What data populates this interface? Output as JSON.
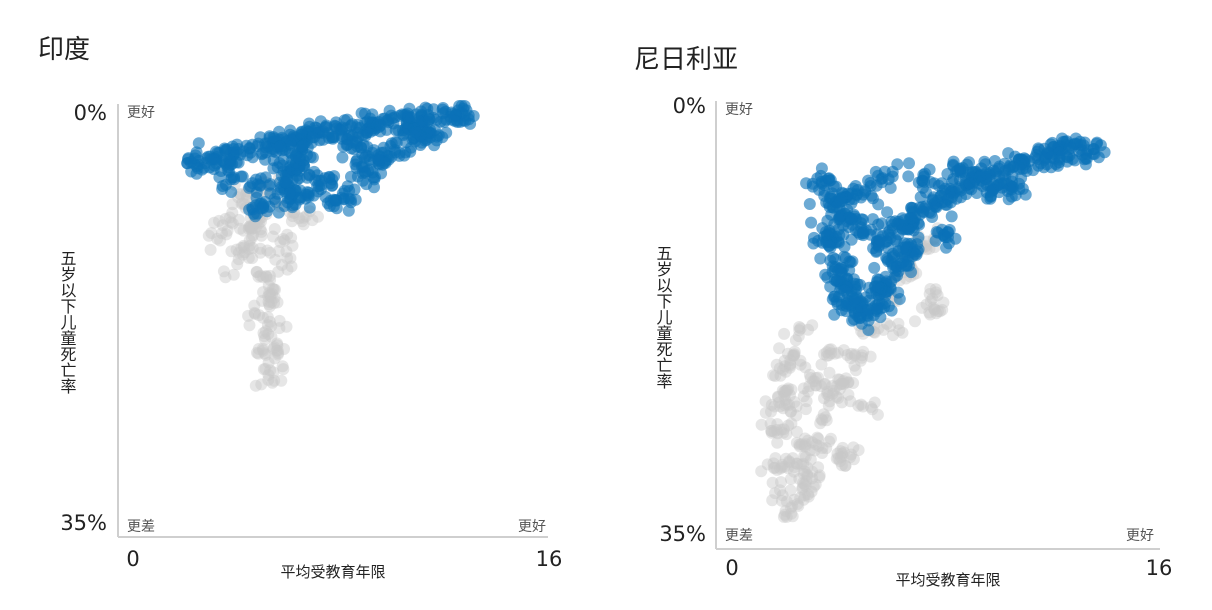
{
  "chart_data": [
    {
      "type": "scatter",
      "title": "印度",
      "xlabel": "平均受教育年限",
      "ylabel": "五岁以下儿童死亡率",
      "xlim": [
        0,
        16
      ],
      "ylim": [
        0,
        35
      ],
      "y_inverted": true,
      "x_tick_labels": [
        "0",
        "16"
      ],
      "y_tick_labels": [
        "0%",
        "35%"
      ],
      "corner_labels": {
        "top_left": "更好",
        "bottom_left": "更差",
        "bottom_right": "更好"
      },
      "series": [
        {
          "color": "#c8c8c8",
          "opacity": 0.45,
          "count": 200,
          "points": [
            [
              4.6,
              8
            ],
            [
              4.9,
              11
            ],
            [
              5.0,
              10
            ],
            [
              5.3,
              12
            ],
            [
              5.4,
              14
            ],
            [
              5.6,
              16
            ],
            [
              5.7,
              18
            ],
            [
              5.2,
              9
            ],
            [
              4.5,
              12
            ],
            [
              4.2,
              9.5
            ],
            [
              3.8,
              11
            ],
            [
              5.9,
              20
            ],
            [
              5.8,
              15
            ],
            [
              6.1,
              13
            ],
            [
              6.2,
              11
            ],
            [
              4.8,
              7
            ],
            [
              5.5,
              7
            ],
            [
              6.5,
              9
            ],
            [
              7.0,
              9
            ],
            [
              4.0,
              14
            ],
            [
              5.1,
              17
            ],
            [
              5.4,
              20
            ],
            [
              5.6,
              22
            ]
          ]
        },
        {
          "color": "#0a72b8",
          "opacity": 0.6,
          "count": 600,
          "points": [
            [
              3.0,
              4.8
            ],
            [
              3.6,
              4.3
            ],
            [
              4.3,
              4.0
            ],
            [
              4.9,
              3.5
            ],
            [
              5.6,
              3.3
            ],
            [
              6.1,
              3.0
            ],
            [
              6.6,
              2.9
            ],
            [
              7.0,
              2.5
            ],
            [
              7.6,
              2.2
            ],
            [
              8.3,
              2.0
            ],
            [
              9.0,
              1.8
            ],
            [
              9.5,
              1.6
            ],
            [
              10.0,
              1.2
            ],
            [
              10.8,
              1.0
            ],
            [
              11.3,
              0.8
            ],
            [
              12.1,
              0.6
            ],
            [
              12.8,
              0.6
            ],
            [
              6.3,
              6.0
            ],
            [
              6.4,
              7.6
            ],
            [
              6.6,
              5.3
            ],
            [
              7.1,
              7.1
            ],
            [
              7.7,
              5.9
            ],
            [
              8.4,
              7.6
            ],
            [
              9.1,
              5.5
            ],
            [
              9.7,
              4.5
            ],
            [
              10.3,
              3.6
            ],
            [
              11.0,
              2.6
            ],
            [
              11.6,
              2.2
            ],
            [
              5.2,
              6.4
            ],
            [
              4.2,
              6.0
            ],
            [
              5.4,
              8.1
            ],
            [
              6.8,
              4.1
            ],
            [
              8.9,
              3.3
            ],
            [
              10.6,
              2.0
            ]
          ]
        }
      ]
    },
    {
      "type": "scatter",
      "title": "尼日利亚",
      "xlabel": "平均受教育年限",
      "ylabel": "五岁以下儿童死亡率",
      "xlim": [
        0,
        16
      ],
      "ylim": [
        0,
        35
      ],
      "y_inverted": true,
      "x_tick_labels": [
        "0",
        "16"
      ],
      "y_tick_labels": [
        "0%",
        "35%"
      ],
      "corner_labels": {
        "top_left": "更好",
        "bottom_left": "更差",
        "bottom_right": "更好"
      },
      "series": [
        {
          "color": "#c8c8c8",
          "opacity": 0.45,
          "count": 350,
          "points": [
            [
              2.3,
              21
            ],
            [
              2.5,
              23
            ],
            [
              2.9,
              24
            ],
            [
              2.6,
              25.5
            ],
            [
              3.0,
              27
            ],
            [
              2.9,
              28.5
            ],
            [
              3.3,
              29.5
            ],
            [
              3.6,
              27
            ],
            [
              2.1,
              26
            ],
            [
              2.2,
              29
            ],
            [
              2.4,
              31
            ],
            [
              2.7,
              32
            ],
            [
              3.2,
              31
            ],
            [
              3.8,
              25
            ],
            [
              4.2,
              23
            ],
            [
              4.6,
              22
            ],
            [
              5.0,
              20
            ],
            [
              5.6,
              18
            ],
            [
              6.3,
              15
            ],
            [
              7.0,
              13
            ],
            [
              7.6,
              11
            ],
            [
              6.6,
              18
            ],
            [
              7.8,
              15.5
            ],
            [
              8.0,
              16.5
            ],
            [
              4.5,
              28
            ],
            [
              3.0,
              18
            ],
            [
              2.8,
              20
            ],
            [
              5.3,
              24
            ],
            [
              4.0,
              20
            ],
            [
              3.5,
              22
            ],
            [
              2.1,
              24
            ]
          ]
        },
        {
          "color": "#0a72b8",
          "opacity": 0.6,
          "count": 700,
          "points": [
            [
              3.8,
              6.3
            ],
            [
              3.9,
              7.4
            ],
            [
              4.2,
              8.3
            ],
            [
              4.5,
              9.0
            ],
            [
              4.9,
              9.2
            ],
            [
              5.4,
              10.1
            ],
            [
              4.4,
              11.0
            ],
            [
              4.3,
              12.4
            ],
            [
              4.5,
              13.4
            ],
            [
              4.6,
              14.5
            ],
            [
              4.7,
              15.6
            ],
            [
              4.9,
              16.2
            ],
            [
              5.2,
              17.0
            ],
            [
              5.4,
              15.4
            ],
            [
              5.8,
              16.5
            ],
            [
              6.3,
              14.7
            ],
            [
              6.5,
              13.0
            ],
            [
              6.9,
              12.2
            ],
            [
              5.8,
              11.0
            ],
            [
              6.2,
              10.3
            ],
            [
              6.7,
              9.7
            ],
            [
              7.1,
              9.4
            ],
            [
              7.5,
              8.4
            ],
            [
              8.0,
              7.8
            ],
            [
              8.5,
              7.0
            ],
            [
              9.1,
              6.5
            ],
            [
              9.5,
              5.8
            ],
            [
              10.0,
              5.4
            ],
            [
              10.6,
              5.1
            ],
            [
              11.1,
              4.7
            ],
            [
              11.6,
              4.5
            ],
            [
              12.0,
              4.1
            ],
            [
              12.4,
              3.8
            ],
            [
              12.8,
              3.6
            ],
            [
              13.4,
              3.8
            ],
            [
              9.9,
              6.7
            ],
            [
              10.6,
              6.6
            ],
            [
              8.8,
              5.4
            ],
            [
              7.5,
              5.9
            ],
            [
              7.0,
              11.5
            ],
            [
              8.2,
              10.5
            ],
            [
              5.3,
              7.3
            ],
            [
              6.0,
              6.0
            ],
            [
              5.8,
              14.2
            ],
            [
              4.0,
              10.5
            ],
            [
              4.7,
              7.5
            ]
          ]
        }
      ]
    }
  ]
}
